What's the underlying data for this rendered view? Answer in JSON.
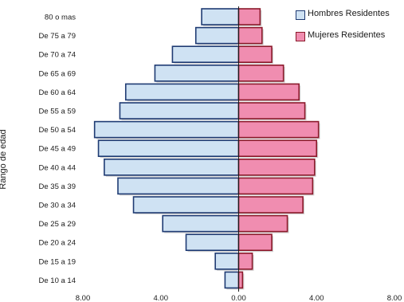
{
  "chart_data": {
    "type": "bar",
    "orientation": "horizontal",
    "subtype": "population-pyramid",
    "title": "",
    "xlabel": "",
    "ylabel": "Rango de edad",
    "xlim": [
      -8,
      8
    ],
    "x_ticks": [
      "8.00",
      "4.00",
      "0.00",
      "4.00",
      "8.00"
    ],
    "x_tick_values": [
      -8,
      -4,
      0,
      4,
      8
    ],
    "categories": [
      "80 o mas",
      "De 75 a 79",
      "De 70 a 74",
      "De 65 a 69",
      "De 60 a 64",
      "De 55 a 59",
      "De 50 a 54",
      "De 45 a 49",
      "De 40 a 44",
      "De 35 a 39",
      "De 30 a 34",
      "De 25 a 29",
      "De 20 a 24",
      "De 15 a 19",
      "De 10 a 14"
    ],
    "series": [
      {
        "name": "Hombres Residentes",
        "side": "left",
        "color": "#cfe2f3",
        "edge": "#1f3b73",
        "values": [
          1.9,
          2.2,
          3.4,
          4.3,
          5.8,
          6.1,
          7.4,
          7.2,
          6.9,
          6.2,
          5.4,
          3.9,
          2.7,
          1.2,
          0.7
        ]
      },
      {
        "name": "Mujeres Residentes",
        "side": "right",
        "color": "#f08db0",
        "edge": "#8b1a2b",
        "values": [
          1.1,
          1.2,
          1.7,
          2.3,
          3.1,
          3.4,
          4.1,
          4.0,
          3.9,
          3.8,
          3.3,
          2.5,
          1.7,
          0.7,
          0.2
        ]
      }
    ],
    "legend": "top-right",
    "grid": false
  }
}
